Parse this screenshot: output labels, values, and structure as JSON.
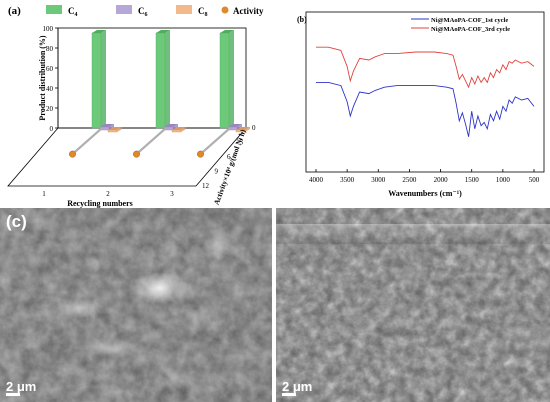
{
  "panel_a": {
    "label": "(a)",
    "legend": [
      {
        "name": "C4",
        "main": "C",
        "sub": "4",
        "color": "#6cc97a"
      },
      {
        "name": "C6",
        "main": "C",
        "sub": "6",
        "color": "#b7a6d8"
      },
      {
        "name": "C8",
        "main": "C",
        "sub": "8",
        "color": "#f2b98a"
      },
      {
        "name": "Activity",
        "main": "Activity",
        "sub": "",
        "color": "#e0892a"
      }
    ],
    "ylabel": "Product distribution (%)",
    "xlabel": "Recycling numbers",
    "zlabel": "Activity×10⁴ g/(mol Ni h)",
    "yticks": [
      "0",
      "20",
      "40",
      "60",
      "80",
      "100"
    ],
    "xticks": [
      "1",
      "2",
      "3"
    ],
    "zticks": [
      "0",
      "3",
      "6",
      "9",
      "12"
    ]
  },
  "panel_b": {
    "label": "(b)",
    "xlabel": "Wavenumbers (cm⁻¹)",
    "xticks": [
      "4000",
      "3500",
      "3000",
      "2500",
      "2000",
      "1500",
      "1000",
      "500"
    ],
    "legend": [
      {
        "name": "Ni@MAoPA-COF_1st cycle",
        "color": "#2d33c8"
      },
      {
        "name": "Ni@MAoPA-COF_3rd cycle",
        "color": "#e0443f"
      }
    ]
  },
  "panel_c": {
    "label": "(c)",
    "left_scale": "2 μm",
    "right_scale": "2 μm"
  },
  "chart_data": [
    {
      "type": "bar",
      "categories": [
        "1",
        "2",
        "3"
      ],
      "series": [
        {
          "name": "C4",
          "values": [
            95,
            95,
            95
          ]
        },
        {
          "name": "C6",
          "values": [
            3,
            3,
            3
          ]
        },
        {
          "name": "C8",
          "values": [
            2,
            2,
            2
          ]
        },
        {
          "name": "Activity",
          "values": [
            12,
            12,
            12
          ]
        }
      ],
      "xlabel": "Recycling numbers",
      "ylabel": "Product distribution (%)",
      "ylim": [
        0,
        100
      ],
      "zlim": [
        0,
        12
      ]
    },
    {
      "type": "line",
      "xlabel": "Wavenumbers (cm⁻¹)",
      "xlim": [
        4000,
        500
      ],
      "series": [
        {
          "name": "Ni@MAoPA-COF_1st cycle",
          "x": [
            4000,
            3800,
            3600,
            3500,
            3450,
            3400,
            3300,
            3150,
            3050,
            2900,
            2700,
            2400,
            2100,
            1900,
            1800,
            1750,
            1700,
            1650,
            1600,
            1550,
            1500,
            1450,
            1400,
            1350,
            1300,
            1250,
            1200,
            1150,
            1100,
            1050,
            1000,
            950,
            900,
            850,
            800,
            700,
            600,
            500
          ],
          "y": [
            0.56,
            0.56,
            0.54,
            0.44,
            0.35,
            0.41,
            0.5,
            0.49,
            0.51,
            0.53,
            0.54,
            0.54,
            0.54,
            0.53,
            0.52,
            0.43,
            0.32,
            0.37,
            0.3,
            0.22,
            0.38,
            0.27,
            0.35,
            0.29,
            0.31,
            0.27,
            0.36,
            0.32,
            0.38,
            0.33,
            0.41,
            0.38,
            0.45,
            0.43,
            0.47,
            0.45,
            0.46,
            0.41
          ]
        },
        {
          "name": "Ni@MAoPA-COF_3rd cycle",
          "x": [
            4000,
            3800,
            3600,
            3500,
            3450,
            3400,
            3300,
            3150,
            3050,
            2900,
            2700,
            2400,
            2100,
            1900,
            1800,
            1750,
            1700,
            1650,
            1600,
            1550,
            1500,
            1450,
            1400,
            1350,
            1300,
            1250,
            1200,
            1150,
            1100,
            1050,
            1000,
            950,
            900,
            850,
            800,
            700,
            600,
            500
          ],
          "y": [
            0.78,
            0.78,
            0.76,
            0.66,
            0.57,
            0.63,
            0.71,
            0.7,
            0.72,
            0.74,
            0.74,
            0.75,
            0.75,
            0.74,
            0.73,
            0.66,
            0.58,
            0.61,
            0.57,
            0.53,
            0.59,
            0.55,
            0.6,
            0.56,
            0.59,
            0.56,
            0.62,
            0.59,
            0.64,
            0.62,
            0.67,
            0.64,
            0.69,
            0.68,
            0.7,
            0.68,
            0.69,
            0.66
          ]
        }
      ]
    }
  ]
}
